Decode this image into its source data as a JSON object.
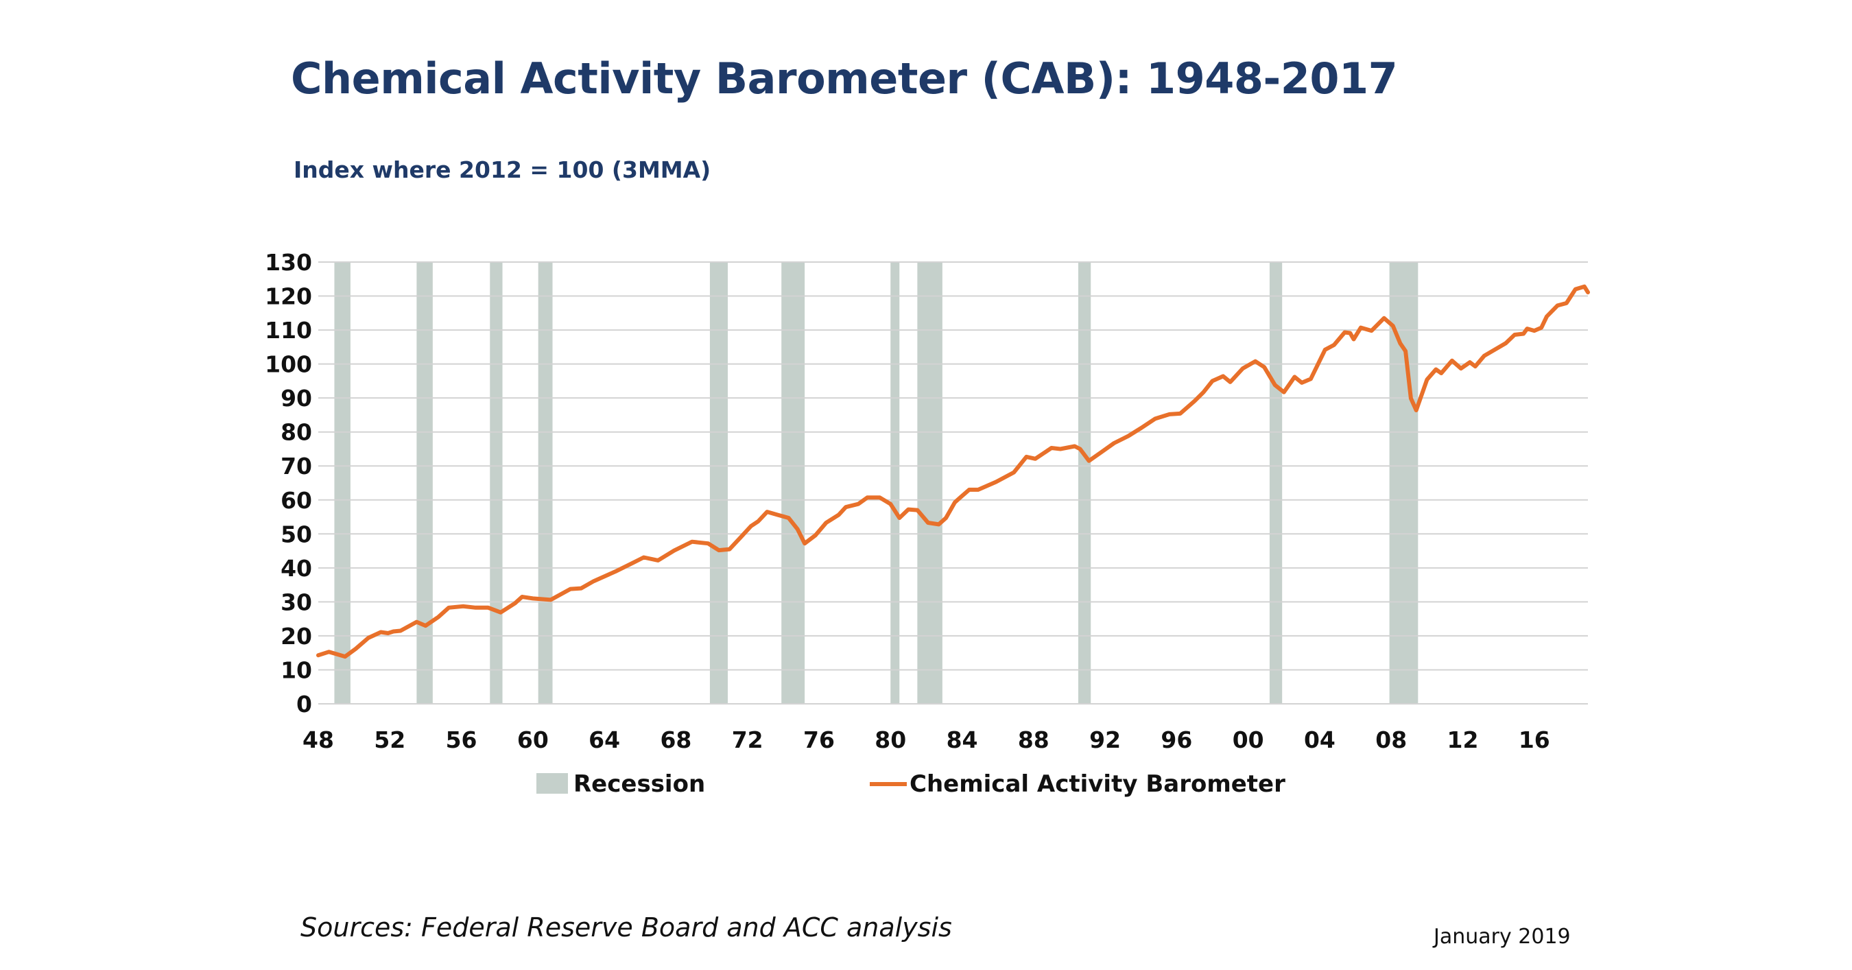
{
  "header": {
    "title": "Chemical Activity Barometer (CAB): 1948-2017",
    "subtitle": "Index where 2012 = 100 (3MMA)"
  },
  "footer": {
    "source": "Sources: Federal Reserve Board and ACC analysis",
    "date": "January 2019"
  },
  "colors": {
    "line": "#e8702a",
    "recession": "#c5d0cb",
    "grid": "#d3d3d3",
    "title": "#1f3a68"
  },
  "chart_data": {
    "type": "line",
    "title": "Chemical Activity Barometer (CAB): 1948-2017",
    "subtitle": "Index where 2012 = 100 (3MMA)",
    "xlabel": "",
    "ylabel": "",
    "xlim": [
      1948,
      2019
    ],
    "ylim": [
      0,
      130
    ],
    "y_ticks": [
      0,
      10,
      20,
      30,
      40,
      50,
      60,
      70,
      80,
      90,
      100,
      110,
      120,
      130
    ],
    "x_ticks": [
      1948,
      1952,
      1956,
      1960,
      1964,
      1968,
      1972,
      1976,
      1980,
      1984,
      1988,
      1992,
      1996,
      2000,
      2004,
      2008,
      2012,
      2016
    ],
    "x_tick_labels": [
      "48",
      "52",
      "56",
      "60",
      "64",
      "68",
      "72",
      "76",
      "80",
      "84",
      "88",
      "92",
      "96",
      "00",
      "04",
      "08",
      "12",
      "16"
    ],
    "grid": "horizontal",
    "legend_position": "bottom",
    "legend": [
      "Recession",
      "Chemical Activity Barometer"
    ],
    "recessions": [
      [
        1948.9,
        1949.8
      ],
      [
        1953.5,
        1954.4
      ],
      [
        1957.6,
        1958.3
      ],
      [
        1960.3,
        1961.1
      ],
      [
        1969.9,
        1970.9
      ],
      [
        1973.9,
        1975.2
      ],
      [
        1980.0,
        1980.5
      ],
      [
        1981.5,
        1982.9
      ],
      [
        1990.5,
        1991.2
      ],
      [
        2001.2,
        2001.9
      ],
      [
        2007.9,
        2009.5
      ]
    ],
    "series": [
      {
        "name": "Chemical Activity Barometer",
        "x": [
          1948.0,
          1948.6,
          1949.5,
          1950.1,
          1950.8,
          1951.5,
          1951.9,
          1952.2,
          1952.6,
          1953.5,
          1954.0,
          1954.7,
          1955.3,
          1956.1,
          1956.8,
          1957.5,
          1958.2,
          1959.0,
          1959.4,
          1960.0,
          1961.0,
          1962.1,
          1962.7,
          1963.4,
          1964.6,
          1965.6,
          1966.2,
          1967.0,
          1967.9,
          1968.9,
          1969.8,
          1970.4,
          1971.0,
          1971.6,
          1972.2,
          1972.6,
          1973.1,
          1973.7,
          1974.3,
          1974.8,
          1975.2,
          1975.8,
          1976.4,
          1977.1,
          1977.5,
          1978.2,
          1978.7,
          1979.4,
          1980.0,
          1980.5,
          1981.0,
          1981.5,
          1982.1,
          1982.7,
          1983.1,
          1983.6,
          1983.9,
          1984.4,
          1984.9,
          1985.9,
          1986.9,
          1987.6,
          1988.1,
          1989.0,
          1989.5,
          1990.3,
          1990.6,
          1991.1,
          1991.8,
          1992.5,
          1993.3,
          1994.0,
          1994.8,
          1995.6,
          1996.2,
          1997.0,
          1997.5,
          1998.0,
          1998.6,
          1999.0,
          1999.7,
          2000.4,
          2000.9,
          2001.5,
          2002.0,
          2002.6,
          2003.0,
          2003.5,
          2004.3,
          2004.8,
          2005.4,
          2005.7,
          2005.9,
          2006.3,
          2006.9,
          2007.6,
          2008.1,
          2008.5,
          2008.8,
          2009.1,
          2009.4,
          2010.0,
          2010.5,
          2010.8,
          2011.4,
          2011.9,
          2012.4,
          2012.7,
          2013.2,
          2014.4,
          2014.9,
          2015.4,
          2015.6,
          2016.0,
          2016.4,
          2016.7,
          2017.3,
          2017.8,
          2018.3,
          2018.8,
          2019.0
        ],
        "y": [
          14.3,
          15.3,
          13.9,
          16.2,
          19.4,
          21.1,
          20.8,
          21.3,
          21.5,
          24.1,
          23.0,
          25.5,
          28.3,
          28.7,
          28.3,
          28.3,
          26.9,
          29.6,
          31.5,
          31.0,
          30.6,
          33.8,
          34.0,
          36.1,
          38.9,
          41.5,
          43.1,
          42.2,
          45.1,
          47.7,
          47.2,
          45.2,
          45.5,
          48.9,
          52.3,
          53.7,
          56.5,
          55.6,
          54.7,
          51.4,
          47.2,
          49.6,
          53.3,
          55.6,
          57.9,
          58.8,
          60.7,
          60.7,
          58.8,
          54.7,
          57.2,
          57.0,
          53.3,
          52.8,
          54.7,
          59.3,
          60.7,
          63.0,
          63.0,
          65.3,
          68.1,
          72.7,
          72.1,
          75.3,
          75.0,
          75.8,
          75.0,
          71.5,
          74.1,
          76.7,
          78.8,
          81.1,
          83.9,
          85.2,
          85.4,
          89.1,
          91.7,
          95.0,
          96.4,
          94.7,
          98.7,
          100.8,
          99.1,
          93.8,
          91.7,
          96.2,
          94.5,
          95.6,
          104.2,
          105.6,
          109.3,
          109.1,
          107.3,
          110.7,
          109.8,
          113.5,
          111.2,
          106.1,
          103.8,
          89.9,
          86.4,
          95.4,
          98.4,
          97.3,
          101.0,
          98.7,
          100.5,
          99.3,
          102.4,
          106.1,
          108.6,
          108.9,
          110.4,
          109.8,
          110.7,
          114.0,
          117.2,
          117.9,
          122.0,
          122.8,
          121.1
        ]
      }
    ]
  }
}
